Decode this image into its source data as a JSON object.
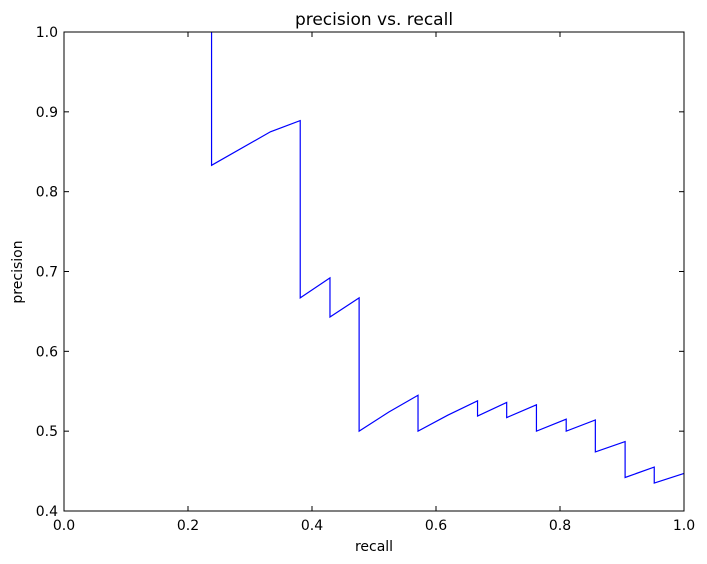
{
  "chart_data": {
    "type": "line",
    "title": "precision vs. recall",
    "xlabel": "recall",
    "ylabel": "precision",
    "xlim": [
      0.0,
      1.0
    ],
    "ylim": [
      0.4,
      1.0
    ],
    "xticks": [
      "0.0",
      "0.2",
      "0.4",
      "0.6",
      "0.8",
      "1.0"
    ],
    "yticks": [
      "0.4",
      "0.5",
      "0.6",
      "0.7",
      "0.8",
      "0.9",
      "1.0"
    ],
    "grid": false,
    "series": [
      {
        "color": "#0000ff",
        "x": [
          0.238,
          0.238,
          0.333,
          0.381,
          0.381,
          0.429,
          0.429,
          0.476,
          0.476,
          0.524,
          0.571,
          0.571,
          0.619,
          0.667,
          0.667,
          0.714,
          0.714,
          0.762,
          0.762,
          0.81,
          0.81,
          0.857,
          0.857,
          0.905,
          0.905,
          0.952,
          0.952,
          1.0
        ],
        "y": [
          1.0,
          0.833,
          0.875,
          0.889,
          0.667,
          0.692,
          0.643,
          0.667,
          0.5,
          0.524,
          0.545,
          0.5,
          0.52,
          0.538,
          0.519,
          0.536,
          0.517,
          0.533,
          0.5,
          0.515,
          0.5,
          0.514,
          0.474,
          0.487,
          0.442,
          0.455,
          0.435,
          0.447
        ]
      }
    ]
  }
}
